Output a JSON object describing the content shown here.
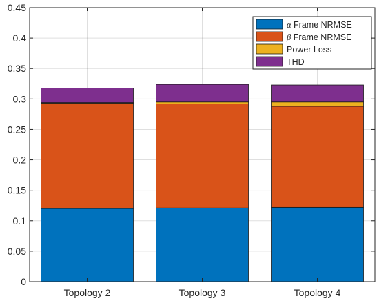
{
  "chart_data": {
    "type": "bar",
    "stacked": true,
    "categories": [
      "Topology 2",
      "Topology 3",
      "Topology 4"
    ],
    "series": [
      {
        "name": "α Frame NRMSE",
        "name_prefix": "α",
        "name_rest": " Frame NRMSE",
        "color": "#0072BD",
        "values": [
          0.12,
          0.121,
          0.122
        ]
      },
      {
        "name": "β Frame NRMSE",
        "name_prefix": "β",
        "name_rest": " Frame NRMSE",
        "color": "#D95319",
        "values": [
          0.173,
          0.171,
          0.166
        ]
      },
      {
        "name": "Power Loss",
        "name_prefix": "",
        "name_rest": "Power Loss",
        "color": "#EDB120",
        "values": [
          0.001,
          0.003,
          0.007
        ]
      },
      {
        "name": "THD",
        "name_prefix": "",
        "name_rest": "THD",
        "color": "#7E2F8E",
        "values": [
          0.024,
          0.029,
          0.028
        ]
      }
    ],
    "ylim": [
      0,
      0.45
    ],
    "yticks": [
      "0",
      "0.05",
      "0.1",
      "0.15",
      "0.2",
      "0.25",
      "0.3",
      "0.35",
      "0.4",
      "0.45"
    ],
    "ytick_values": [
      0,
      0.05,
      0.1,
      0.15,
      0.2,
      0.25,
      0.3,
      0.35,
      0.4,
      0.45
    ],
    "grid": true,
    "legend_position": "top-right",
    "title": "",
    "xlabel": "",
    "ylabel": ""
  }
}
